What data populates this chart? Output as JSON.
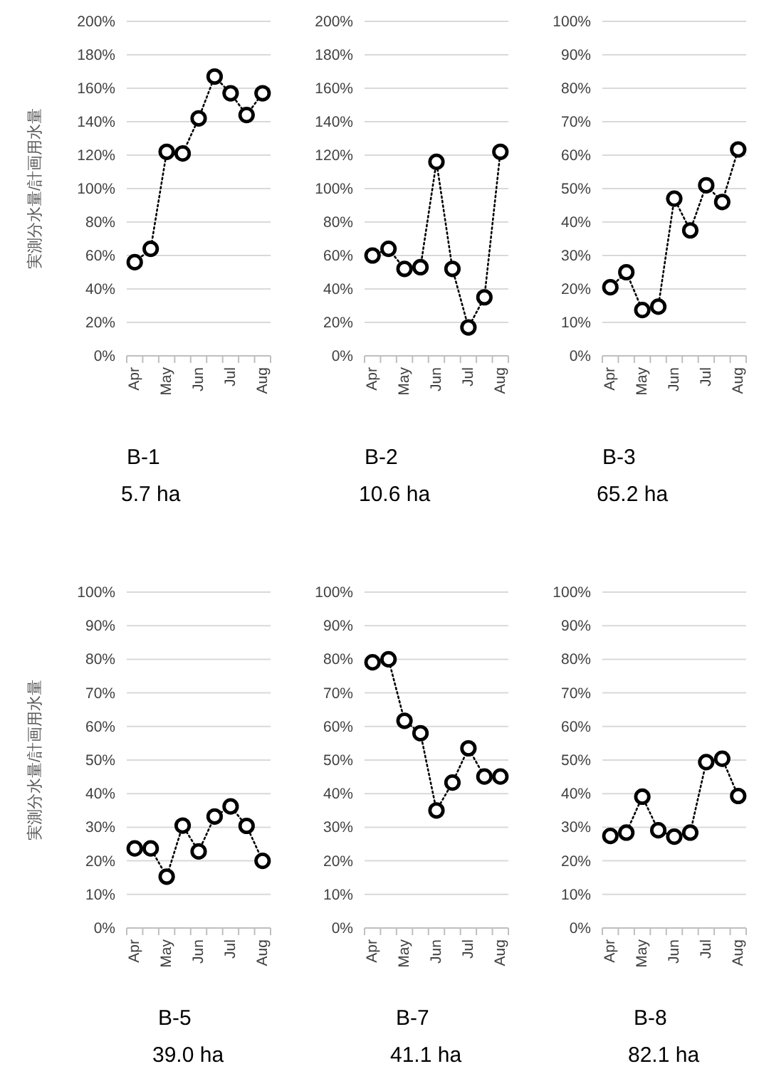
{
  "chart_data": [
    {
      "type": "line",
      "title": "B-1",
      "subtitle": "5.7 ha",
      "ylabel": "実測分水量/計画用水量",
      "categories": [
        "Apr",
        null,
        "May",
        null,
        "Jun",
        null,
        "Jul",
        null,
        "Aug"
      ],
      "series": [
        {
          "color": "#000000",
          "values": [
            56,
            64,
            122,
            121,
            142,
            167,
            157,
            144,
            157
          ]
        }
      ],
      "ylim": [
        0,
        200
      ],
      "yticks": [
        {
          "value": 0,
          "label": "0%"
        },
        {
          "value": 20,
          "label": "20%"
        },
        {
          "value": 40,
          "label": "40%"
        },
        {
          "value": 60,
          "label": "60%"
        },
        {
          "value": 80,
          "label": "80%"
        },
        {
          "value": 100,
          "label": "100%"
        },
        {
          "value": 120,
          "label": "120%"
        },
        {
          "value": 140,
          "label": "140%"
        },
        {
          "value": 160,
          "label": "160%"
        },
        {
          "value": 180,
          "label": "180%"
        },
        {
          "value": 200,
          "label": "200%"
        }
      ],
      "marker": "circle",
      "line_style": "dotted",
      "grid": "y"
    },
    {
      "type": "line",
      "title": "B-2",
      "subtitle": "10.6 ha",
      "categories": [
        "Apr",
        null,
        "May",
        null,
        "Jun",
        null,
        "Jul",
        null,
        "Aug"
      ],
      "series": [
        {
          "color": "#000000",
          "values": [
            60,
            64,
            52,
            53,
            116,
            52,
            17,
            35,
            122
          ]
        }
      ],
      "ylim": [
        0,
        200
      ],
      "yticks": [
        {
          "value": 0,
          "label": "0%"
        },
        {
          "value": 20,
          "label": "20%"
        },
        {
          "value": 40,
          "label": "40%"
        },
        {
          "value": 60,
          "label": "60%"
        },
        {
          "value": 80,
          "label": "80%"
        },
        {
          "value": 100,
          "label": "100%"
        },
        {
          "value": 120,
          "label": "120%"
        },
        {
          "value": 140,
          "label": "140%"
        },
        {
          "value": 160,
          "label": "160%"
        },
        {
          "value": 180,
          "label": "180%"
        },
        {
          "value": 200,
          "label": "200%"
        }
      ],
      "marker": "circle",
      "line_style": "dotted",
      "grid": "y"
    },
    {
      "type": "line",
      "title": "B-3",
      "subtitle": "65.2 ha",
      "categories": [
        "Apr",
        null,
        "May",
        null,
        "Jun",
        null,
        "Jul",
        null,
        "Aug"
      ],
      "series": [
        {
          "color": "#000000",
          "values": [
            20.5,
            25,
            13.7,
            14.7,
            47,
            37.5,
            51,
            46,
            61.7
          ]
        }
      ],
      "ylim": [
        0,
        100
      ],
      "yticks": [
        {
          "value": 0,
          "label": "0%"
        },
        {
          "value": 10,
          "label": "10%"
        },
        {
          "value": 20,
          "label": "20%"
        },
        {
          "value": 30,
          "label": "30%"
        },
        {
          "value": 40,
          "label": "40%"
        },
        {
          "value": 50,
          "label": "50%"
        },
        {
          "value": 60,
          "label": "60%"
        },
        {
          "value": 70,
          "label": "70%"
        },
        {
          "value": 80,
          "label": "80%"
        },
        {
          "value": 90,
          "label": "90%"
        },
        {
          "value": 100,
          "label": "100%"
        }
      ],
      "marker": "circle",
      "line_style": "dotted",
      "grid": "y"
    },
    {
      "type": "line",
      "title": "B-5",
      "subtitle": "39.0 ha",
      "ylabel": "実測分水量/計画用水量",
      "categories": [
        "Apr",
        null,
        "May",
        null,
        "Jun",
        null,
        "Jul",
        null,
        "Aug"
      ],
      "series": [
        {
          "color": "#000000",
          "values": [
            23.7,
            23.7,
            15.3,
            30.5,
            22.8,
            33.2,
            36.2,
            30.4,
            20
          ]
        }
      ],
      "ylim": [
        0,
        100
      ],
      "yticks": [
        {
          "value": 0,
          "label": "0%"
        },
        {
          "value": 10,
          "label": "10%"
        },
        {
          "value": 20,
          "label": "20%"
        },
        {
          "value": 30,
          "label": "30%"
        },
        {
          "value": 40,
          "label": "40%"
        },
        {
          "value": 50,
          "label": "50%"
        },
        {
          "value": 60,
          "label": "60%"
        },
        {
          "value": 70,
          "label": "70%"
        },
        {
          "value": 80,
          "label": "80%"
        },
        {
          "value": 90,
          "label": "90%"
        },
        {
          "value": 100,
          "label": "100%"
        }
      ],
      "marker": "circle",
      "line_style": "dotted",
      "grid": "y"
    },
    {
      "type": "line",
      "title": "B-7",
      "subtitle": "41.1 ha",
      "categories": [
        "Apr",
        null,
        "May",
        null,
        "Jun",
        null,
        "Jul",
        null,
        "Aug"
      ],
      "series": [
        {
          "color": "#000000",
          "values": [
            79.1,
            80,
            61.7,
            58,
            35,
            43.3,
            53.5,
            45.1,
            45.1
          ]
        }
      ],
      "ylim": [
        0,
        100
      ],
      "yticks": [
        {
          "value": 0,
          "label": "0%"
        },
        {
          "value": 10,
          "label": "10%"
        },
        {
          "value": 20,
          "label": "20%"
        },
        {
          "value": 30,
          "label": "30%"
        },
        {
          "value": 40,
          "label": "40%"
        },
        {
          "value": 50,
          "label": "50%"
        },
        {
          "value": 60,
          "label": "60%"
        },
        {
          "value": 70,
          "label": "70%"
        },
        {
          "value": 80,
          "label": "80%"
        },
        {
          "value": 90,
          "label": "90%"
        },
        {
          "value": 100,
          "label": "100%"
        }
      ],
      "marker": "circle",
      "line_style": "dotted",
      "grid": "y"
    },
    {
      "type": "line",
      "title": "B-8",
      "subtitle": "82.1 ha",
      "categories": [
        "Apr",
        null,
        "May",
        null,
        "Jun",
        null,
        "Jul",
        null,
        "Aug"
      ],
      "series": [
        {
          "color": "#000000",
          "values": [
            27.4,
            28.4,
            39.1,
            29.1,
            27.2,
            28.4,
            49.4,
            50.4,
            39.3
          ]
        }
      ],
      "ylim": [
        0,
        100
      ],
      "yticks": [
        {
          "value": 0,
          "label": "0%"
        },
        {
          "value": 10,
          "label": "10%"
        },
        {
          "value": 20,
          "label": "20%"
        },
        {
          "value": 30,
          "label": "30%"
        },
        {
          "value": 40,
          "label": "40%"
        },
        {
          "value": 50,
          "label": "50%"
        },
        {
          "value": 60,
          "label": "60%"
        },
        {
          "value": 70,
          "label": "70%"
        },
        {
          "value": 80,
          "label": "80%"
        },
        {
          "value": 90,
          "label": "90%"
        },
        {
          "value": 100,
          "label": "100%"
        }
      ],
      "marker": "circle",
      "line_style": "dotted",
      "grid": "y"
    }
  ]
}
